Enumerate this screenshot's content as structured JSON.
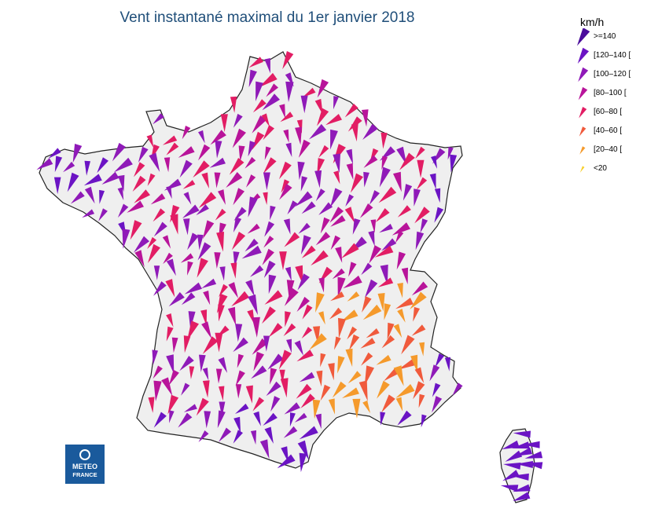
{
  "title": "Vent instantané maximal du 1er janvier 2018",
  "legend": {
    "unit": "km/h",
    "classes": [
      {
        "label": ">=140",
        "color": "#4a0c9c",
        "max_kmh": 999
      },
      {
        "label": "[120–140 [",
        "color": "#6b14c4",
        "max_kmh": 140
      },
      {
        "label": "[100–120 [",
        "color": "#8f1ab8",
        "max_kmh": 120
      },
      {
        "label": "[80–100 [",
        "color": "#b8149a",
        "max_kmh": 100
      },
      {
        "label": "[60–80 [",
        "color": "#e21d64",
        "max_kmh": 80
      },
      {
        "label": "[40–60 [",
        "color": "#f05a3c",
        "max_kmh": 60
      },
      {
        "label": "[20–40 [",
        "color": "#f59a2c",
        "max_kmh": 40
      },
      {
        "label": "<20",
        "color": "#f7cf2a",
        "max_kmh": 20
      }
    ]
  },
  "logo": {
    "line1": "METEO",
    "line2": "FRANCE"
  },
  "colors": {
    "land": "#efefef",
    "border": "#222222"
  }
}
